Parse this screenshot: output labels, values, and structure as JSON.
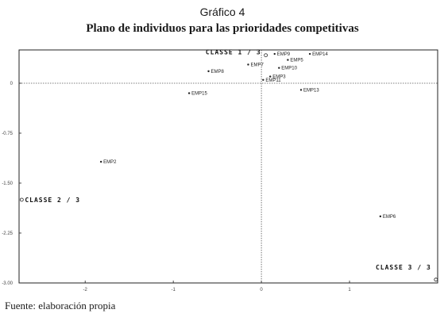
{
  "chart_data": {
    "type": "scatter",
    "title": "Gráfico 4",
    "subtitle": "Plano de individuos para las prioridades competitivas",
    "xlim": [
      -2.75,
      2.0
    ],
    "ylim": [
      -3.0,
      0.5
    ],
    "x_ticks": [
      -2,
      -1,
      0,
      1
    ],
    "y_ticks": [
      0,
      -0.75,
      -1.5,
      -2.25,
      -3.0
    ],
    "y_tick_labels": [
      "0",
      "-0.75",
      "-1.50",
      "-2.25",
      "-3.00"
    ],
    "reference_lines": {
      "x": 0,
      "y": 0
    },
    "points": [
      {
        "label": "EMP9",
        "x": 0.15,
        "y": 0.44
      },
      {
        "label": "EMP14",
        "x": 0.55,
        "y": 0.44
      },
      {
        "label": "EMP5",
        "x": 0.3,
        "y": 0.35
      },
      {
        "label": "EMP10",
        "x": 0.2,
        "y": 0.23
      },
      {
        "label": "EMP7",
        "x": -0.15,
        "y": 0.28
      },
      {
        "label": "EMP8",
        "x": -0.6,
        "y": 0.18
      },
      {
        "label": "EMP3",
        "x": 0.1,
        "y": 0.1
      },
      {
        "label": "EMP11",
        "x": 0.02,
        "y": 0.05
      },
      {
        "label": "EMP13",
        "x": 0.45,
        "y": -0.1
      },
      {
        "label": "EMP15",
        "x": -0.82,
        "y": -0.15
      },
      {
        "label": "EMP2",
        "x": -1.82,
        "y": -1.18
      },
      {
        "label": "EMP6",
        "x": 1.35,
        "y": -2.0
      }
    ],
    "classes": [
      {
        "label": "CLASSE  1 / 3",
        "x": 0.05,
        "y": 0.42
      },
      {
        "label": "CLASSE  2 / 3",
        "x": -2.72,
        "y": -1.75
      },
      {
        "label": "CLASSE  3 / 3",
        "x": 1.98,
        "y": -2.95
      }
    ]
  },
  "source": "Fuente: elaboración propia",
  "colors": {
    "axis": "#222222",
    "reference": "#555555",
    "point": "#222222"
  }
}
